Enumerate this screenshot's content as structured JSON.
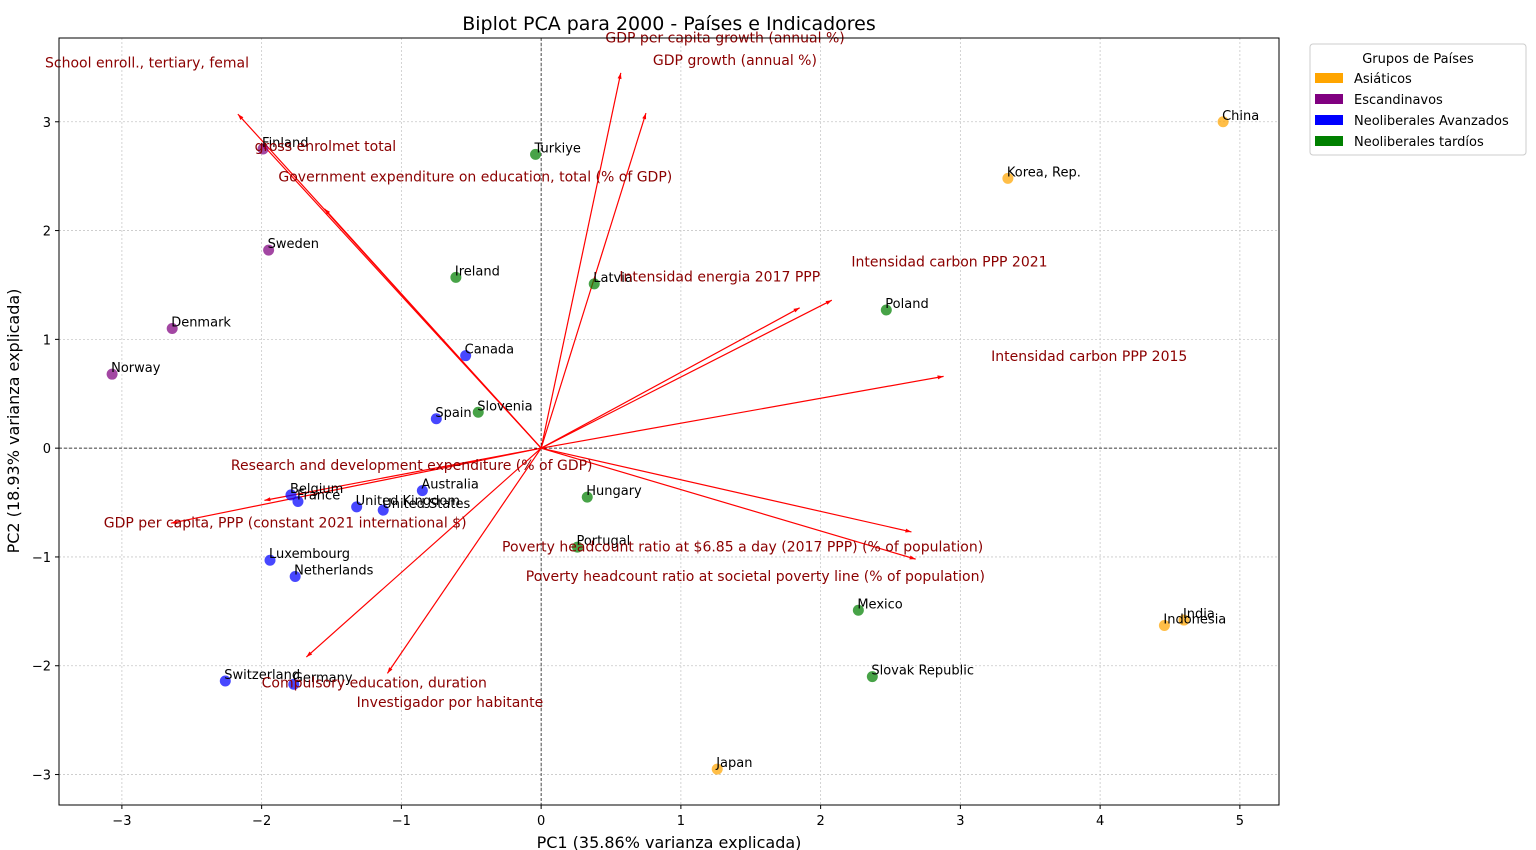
{
  "chart_data": {
    "type": "scatter",
    "title": "Biplot PCA para 2000 - Países e Indicadores",
    "xlabel": "PC1 (35.86% varianza explicada)",
    "ylabel": "PC2 (18.93% varianza explicada)",
    "xlim": [
      -3.45,
      5.28
    ],
    "ylim": [
      -3.28,
      3.77
    ],
    "xticks": [
      -3,
      -2,
      -1,
      0,
      1,
      2,
      3,
      4,
      5
    ],
    "yticks": [
      -3,
      -2,
      -1,
      0,
      1,
      2,
      3
    ],
    "tick_labels": {
      "x": [
        "−3",
        "−2",
        "−1",
        "0",
        "1",
        "2",
        "3",
        "4",
        "5"
      ],
      "y": [
        "−3",
        "−2",
        "−1",
        "0",
        "1",
        "2",
        "3"
      ]
    },
    "grid": true,
    "legend": {
      "title": "Grupos de Países",
      "placement": "outside top-right",
      "groups": [
        {
          "name": "Asiáticos",
          "color": "#ffa500"
        },
        {
          "name": "Escandinavos",
          "color": "#800080"
        },
        {
          "name": "Neoliberales Avanzados",
          "color": "#0000ff"
        },
        {
          "name": "Neoliberales tardíos",
          "color": "#008000"
        }
      ]
    },
    "points": [
      {
        "label": "China",
        "group": 0,
        "x": 4.88,
        "y": 3.0
      },
      {
        "label": "Korea, Rep.",
        "group": 0,
        "x": 3.34,
        "y": 2.48
      },
      {
        "label": "India",
        "group": 0,
        "x": 4.6,
        "y": -1.58
      },
      {
        "label": "Indonesia",
        "group": 0,
        "x": 4.46,
        "y": -1.63
      },
      {
        "label": "Japan",
        "group": 0,
        "x": 1.26,
        "y": -2.95
      },
      {
        "label": "Finland",
        "group": 1,
        "x": -1.99,
        "y": 2.75
      },
      {
        "label": "Sweden",
        "group": 1,
        "x": -1.95,
        "y": 1.82
      },
      {
        "label": "Denmark",
        "group": 1,
        "x": -2.64,
        "y": 1.1
      },
      {
        "label": "Norway",
        "group": 1,
        "x": -3.07,
        "y": 0.68
      },
      {
        "label": "Canada",
        "group": 2,
        "x": -0.54,
        "y": 0.85
      },
      {
        "label": "Spain",
        "group": 2,
        "x": -0.75,
        "y": 0.27
      },
      {
        "label": "Australia",
        "group": 2,
        "x": -0.85,
        "y": -0.39
      },
      {
        "label": "Belgium",
        "group": 2,
        "x": -1.79,
        "y": -0.43
      },
      {
        "label": "France",
        "group": 2,
        "x": -1.74,
        "y": -0.49
      },
      {
        "label": "United Kingdom",
        "group": 2,
        "x": -1.32,
        "y": -0.54
      },
      {
        "label": "United States",
        "group": 2,
        "x": -1.13,
        "y": -0.57
      },
      {
        "label": "Luxembourg",
        "group": 2,
        "x": -1.94,
        "y": -1.03
      },
      {
        "label": "Netherlands",
        "group": 2,
        "x": -1.76,
        "y": -1.18
      },
      {
        "label": "Switzerland",
        "group": 2,
        "x": -2.26,
        "y": -2.14
      },
      {
        "label": "Germany",
        "group": 2,
        "x": -1.77,
        "y": -2.17
      },
      {
        "label": "Turkiye",
        "group": 3,
        "x": -0.04,
        "y": 2.7
      },
      {
        "label": "Ireland",
        "group": 3,
        "x": -0.61,
        "y": 1.57
      },
      {
        "label": "Latvia",
        "group": 3,
        "x": 0.38,
        "y": 1.51
      },
      {
        "label": "Poland",
        "group": 3,
        "x": 2.47,
        "y": 1.27
      },
      {
        "label": "Slovenia",
        "group": 3,
        "x": -0.45,
        "y": 0.33
      },
      {
        "label": "Hungary",
        "group": 3,
        "x": 0.33,
        "y": -0.45
      },
      {
        "label": "Portugal",
        "group": 3,
        "x": 0.26,
        "y": -0.91
      },
      {
        "label": "Mexico",
        "group": 3,
        "x": 2.27,
        "y": -1.49
      },
      {
        "label": "Slovak Republic",
        "group": 3,
        "x": 2.37,
        "y": -2.1
      }
    ],
    "vectors": [
      {
        "label": "School enroll., tertiary, femal",
        "x": -2.17,
        "y": 3.07,
        "lx": -3.55,
        "ly": 3.5
      },
      {
        "label": "gross enrolmet total",
        "x": -2.0,
        "y": 2.8,
        "lx": -2.05,
        "ly": 2.73
      },
      {
        "label": "Government expenditure on education, total (% of GDP)",
        "x": -1.55,
        "y": 2.2,
        "lx": -1.88,
        "ly": 2.45
      },
      {
        "label": "GDP per capita growth (annual %)",
        "x": 0.57,
        "y": 3.45,
        "lx": 0.46,
        "ly": 3.73
      },
      {
        "label": "GDP growth (annual %)",
        "x": 0.75,
        "y": 3.08,
        "lx": 0.8,
        "ly": 3.52
      },
      {
        "label": "Intensidad energia 2017 PPP",
        "x": 1.85,
        "y": 1.29,
        "lx": 0.56,
        "ly": 1.53
      },
      {
        "label": "Intensidad carbon PPP 2021",
        "x": 2.08,
        "y": 1.36,
        "lx": 2.22,
        "ly": 1.67
      },
      {
        "label": "Intensidad carbon PPP 2015",
        "x": 2.88,
        "y": 0.66,
        "lx": 3.22,
        "ly": 0.8
      },
      {
        "label": "Research and development expenditure (% of GDP)",
        "x": -1.98,
        "y": -0.48,
        "lx": -2.22,
        "ly": -0.2
      },
      {
        "label": "GDP per capita, PPP (constant 2021 international $)",
        "x": -2.65,
        "y": -0.69,
        "lx": -3.13,
        "ly": -0.73
      },
      {
        "label": "Poverty headcount ratio at $6.85 a day (2017 PPP) (% of population)",
        "x": 2.65,
        "y": -0.77,
        "lx": -0.28,
        "ly": -0.95
      },
      {
        "label": "Poverty headcount ratio at societal poverty line (% of population)",
        "x": 2.68,
        "y": -1.02,
        "lx": -0.11,
        "ly": -1.22
      },
      {
        "label": "Compulsory education, duration",
        "x": -1.68,
        "y": -1.92,
        "lx": -2.0,
        "ly": -2.2
      },
      {
        "label": "Investigador por habitante",
        "x": -1.1,
        "y": -2.07,
        "lx": -1.32,
        "ly": -2.38
      }
    ]
  }
}
